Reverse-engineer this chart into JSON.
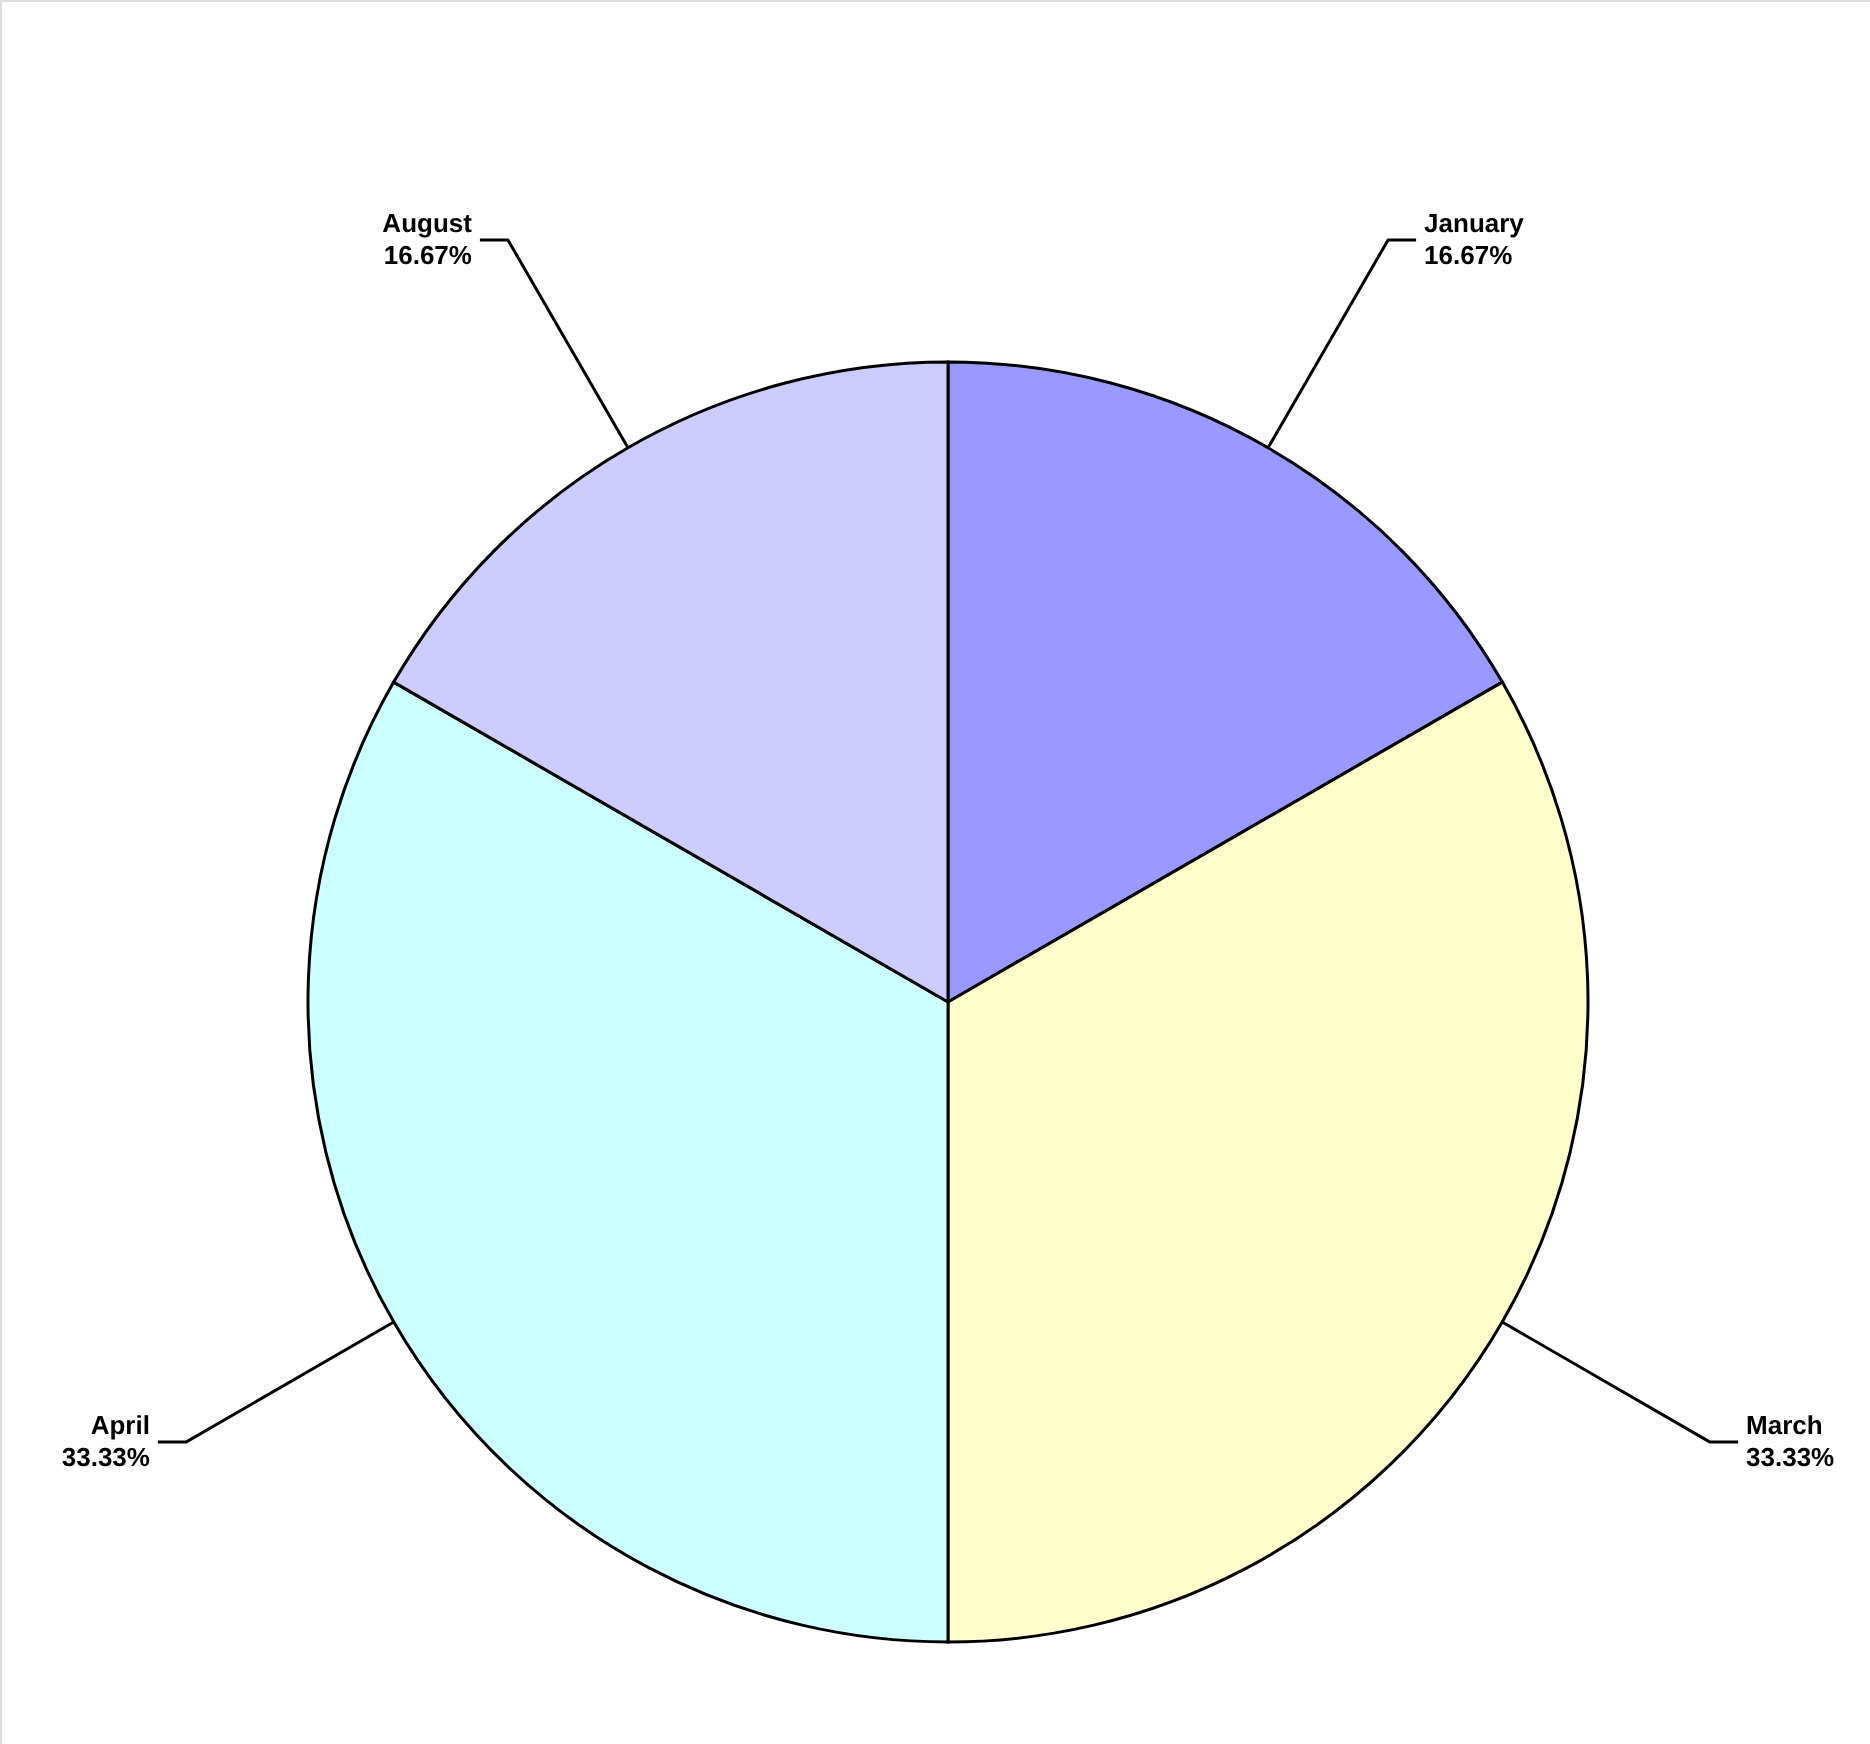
{
  "chart_data": {
    "type": "pie",
    "categories": [
      "January",
      "March",
      "April",
      "August"
    ],
    "values": [
      16.67,
      33.33,
      33.33,
      16.67
    ],
    "colors": [
      "#9999ff",
      "#ffffcc",
      "#ccffff",
      "#ccccff"
    ],
    "value_labels": [
      "16.67%",
      "33.33%",
      "33.33%",
      "16.67%"
    ],
    "legend": false
  }
}
